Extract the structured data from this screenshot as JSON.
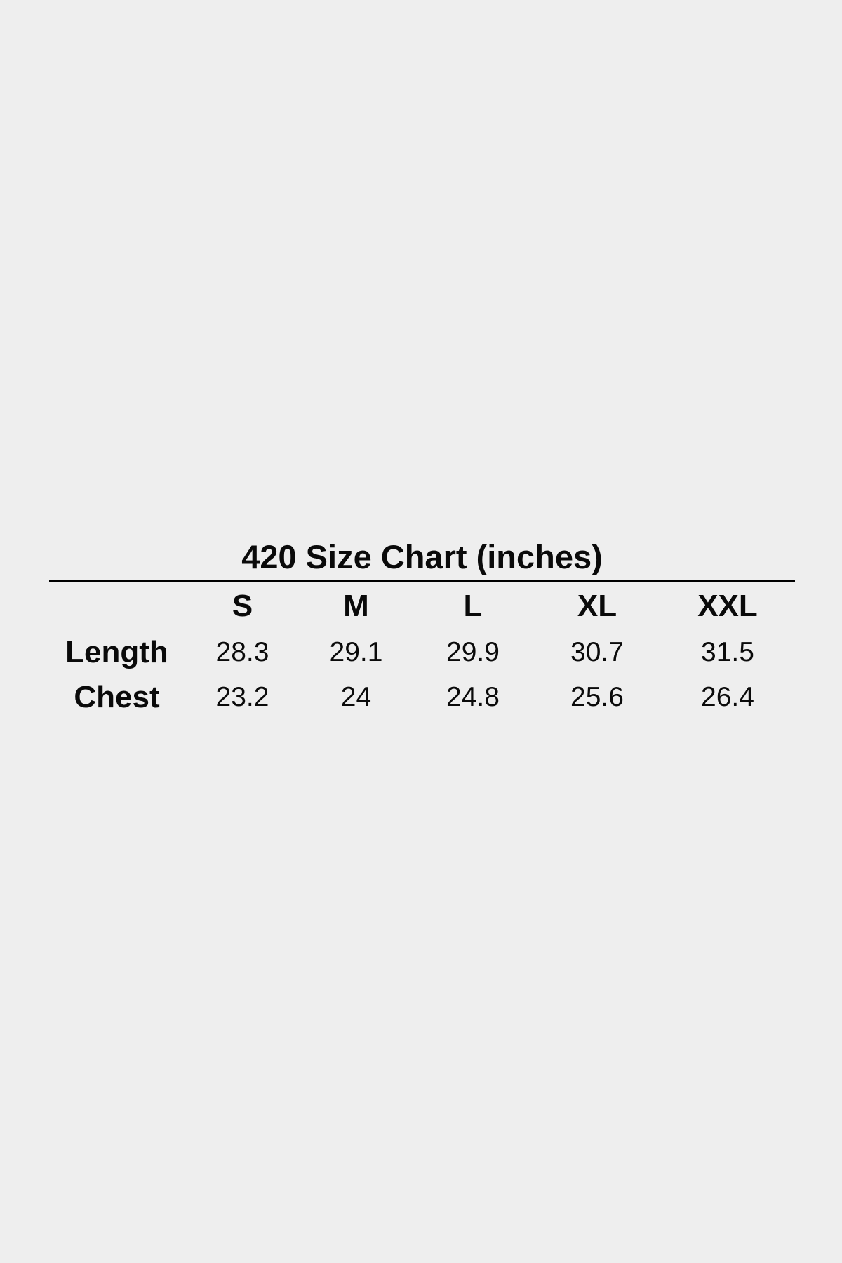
{
  "page": {
    "background_color": "#eeeeee",
    "text_color": "#0a0a0a",
    "rule_color": "#000000"
  },
  "chart_data": {
    "type": "table",
    "title": "420 Size Chart (inches)",
    "columns": [
      "S",
      "M",
      "L",
      "XL",
      "XXL"
    ],
    "rows": [
      {
        "label": "Length",
        "values": [
          "28.3",
          "29.1",
          "29.9",
          "30.7",
          "31.5"
        ]
      },
      {
        "label": "Chest",
        "values": [
          "23.2",
          "24",
          "24.8",
          "25.6",
          "26.4"
        ]
      }
    ]
  }
}
